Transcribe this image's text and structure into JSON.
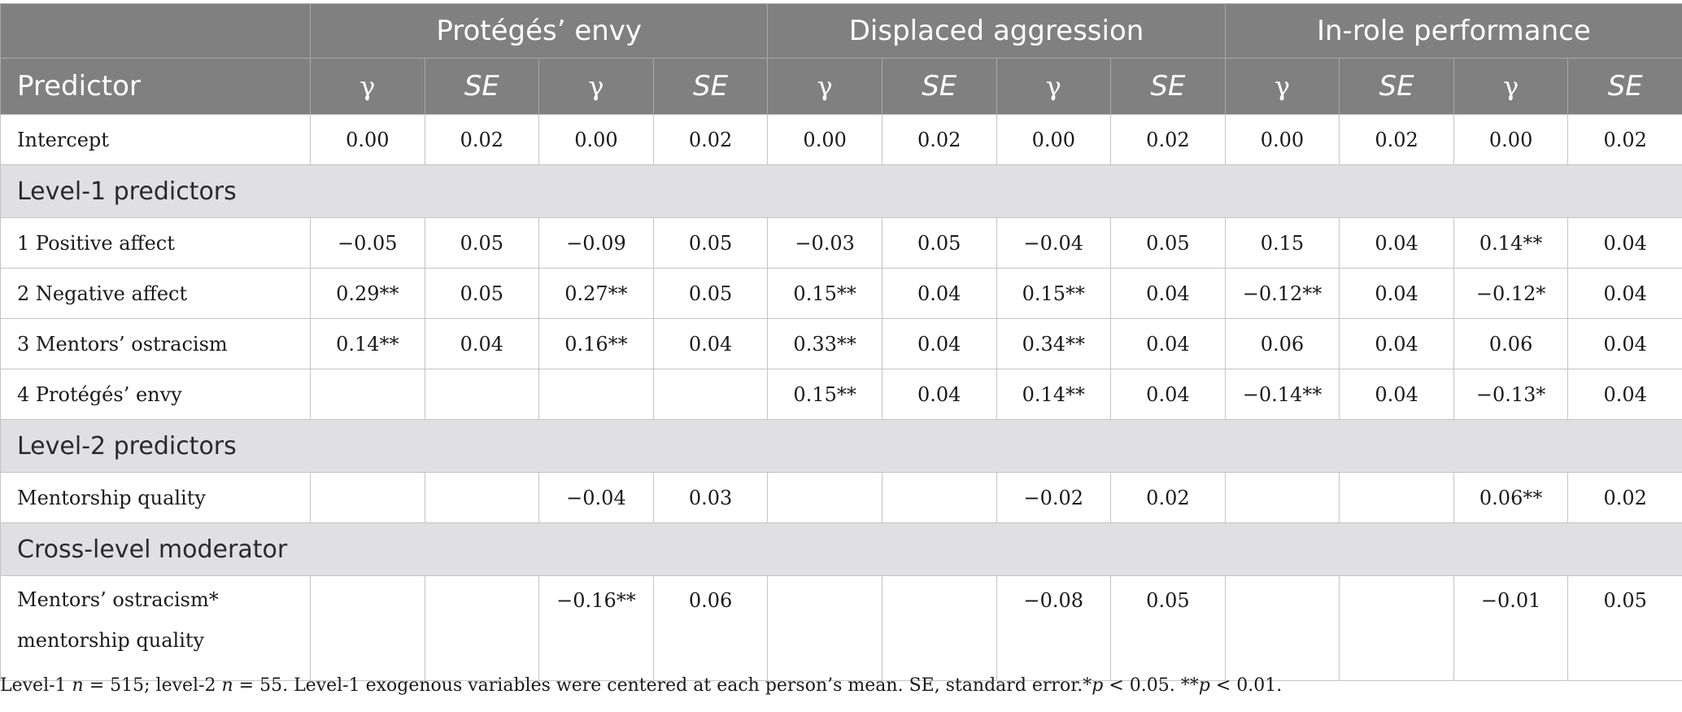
{
  "table": {
    "group_headers": [
      "",
      "Protégés’ envy",
      "Displaced aggression",
      "In-role performance"
    ],
    "predictor_header": "Predictor",
    "gamma_symbol": "γ",
    "se_symbol": "SE",
    "rows": [
      {
        "type": "data",
        "label": "Intercept",
        "values": [
          "0.00",
          "0.02",
          "0.00",
          "0.02",
          "0.00",
          "0.02",
          "0.00",
          "0.02",
          "0.00",
          "0.02",
          "0.00",
          "0.02"
        ]
      },
      {
        "type": "section",
        "label": "Level-1 predictors"
      },
      {
        "type": "data",
        "label": "1 Positive affect",
        "values": [
          "−0.05",
          "0.05",
          "−0.09",
          "0.05",
          "−0.03",
          "0.05",
          "−0.04",
          "0.05",
          "0.15",
          "0.04",
          "0.14**",
          "0.04"
        ]
      },
      {
        "type": "data",
        "label": "2 Negative affect",
        "values": [
          "0.29**",
          "0.05",
          "0.27**",
          "0.05",
          "0.15**",
          "0.04",
          "0.15**",
          "0.04",
          "−0.12**",
          "0.04",
          "−0.12*",
          "0.04"
        ]
      },
      {
        "type": "data",
        "label": "3 Mentors’ ostracism",
        "values": [
          "0.14**",
          "0.04",
          "0.16**",
          "0.04",
          "0.33**",
          "0.04",
          "0.34**",
          "0.04",
          "0.06",
          "0.04",
          "0.06",
          "0.04"
        ]
      },
      {
        "type": "data",
        "label": "4 Protégés’ envy",
        "values": [
          "",
          "",
          "",
          "",
          "0.15**",
          "0.04",
          "0.14**",
          "0.04",
          "−0.14**",
          "0.04",
          "−0.13*",
          "0.04"
        ]
      },
      {
        "type": "section",
        "label": "Level-2 predictors"
      },
      {
        "type": "data",
        "label": "Mentorship quality",
        "values": [
          "",
          "",
          "−0.04",
          "0.03",
          "",
          "",
          "−0.02",
          "0.02",
          "",
          "",
          "0.06**",
          "0.02"
        ]
      },
      {
        "type": "section",
        "label": "Cross-level moderator"
      },
      {
        "type": "data",
        "tall": true,
        "label": "Mentors’ ostracism*",
        "label2": "mentorship quality",
        "values": [
          "",
          "",
          "−0.16**",
          "0.06",
          "",
          "",
          "−0.08",
          "0.05",
          "",
          "",
          "−0.01",
          "0.05"
        ]
      }
    ]
  },
  "note": {
    "parts": [
      {
        "t": "Level-1 ",
        "i": false
      },
      {
        "t": "n",
        "i": true
      },
      {
        "t": " = 515; level-2 ",
        "i": false
      },
      {
        "t": "n",
        "i": true
      },
      {
        "t": " = 55. Level-1 exogenous variables were centered at each person’s mean. SE, standard error.*",
        "i": false
      },
      {
        "t": "p",
        "i": true
      },
      {
        "t": " < 0.05. **",
        "i": false
      },
      {
        "t": "p",
        "i": true
      },
      {
        "t": " < 0.01.",
        "i": false
      }
    ]
  },
  "colors": {
    "header_bg": "#808080",
    "section_bg": "#e0dfe1",
    "border": "#c4c4c4"
  }
}
